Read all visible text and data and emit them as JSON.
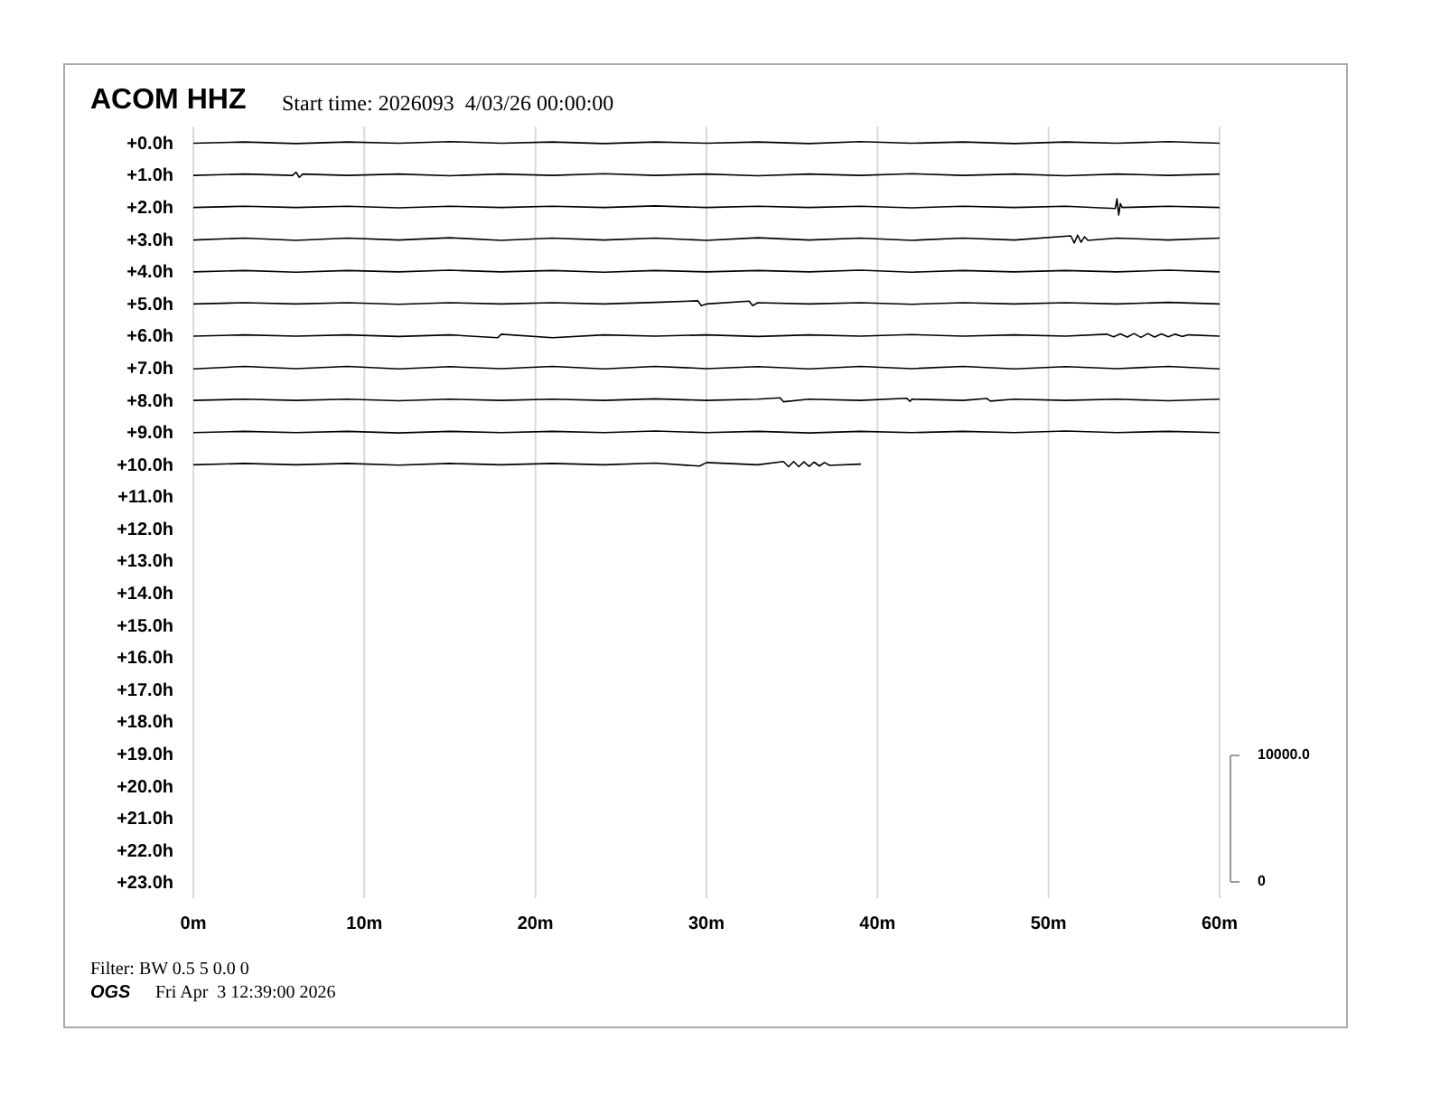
{
  "chart_data": {
    "type": "line",
    "title": "ACOM HHZ",
    "subtitle": "Start time: 2026093  4/03/26 00:00:00",
    "annotations": [
      "10000.0",
      "0",
      "Filter: BW 0.5 5 0.0 0",
      "OGS",
      "Fri Apr  3 12:39:00 2026"
    ],
    "xlim": [
      0,
      60
    ],
    "xticks": [
      {
        "value": 0,
        "label": "0m"
      },
      {
        "value": 10,
        "label": "10m"
      },
      {
        "value": 20,
        "label": "20m"
      },
      {
        "value": 30,
        "label": "30m"
      },
      {
        "value": 40,
        "label": "40m"
      },
      {
        "value": 50,
        "label": "50m"
      },
      {
        "value": 60,
        "label": "60m"
      }
    ],
    "ylim": [
      23.5,
      -0.5
    ],
    "yticks": [
      {
        "value": 0,
        "label": "+0.0h"
      },
      {
        "value": 1,
        "label": "+1.0h"
      },
      {
        "value": 2,
        "label": "+2.0h"
      },
      {
        "value": 3,
        "label": "+3.0h"
      },
      {
        "value": 4,
        "label": "+4.0h"
      },
      {
        "value": 5,
        "label": "+5.0h"
      },
      {
        "value": 6,
        "label": "+6.0h"
      },
      {
        "value": 7,
        "label": "+7.0h"
      },
      {
        "value": 8,
        "label": "+8.0h"
      },
      {
        "value": 9,
        "label": "+9.0h"
      },
      {
        "value": 10,
        "label": "+10.0h"
      },
      {
        "value": 11,
        "label": "+11.0h"
      },
      {
        "value": 12,
        "label": "+12.0h"
      },
      {
        "value": 13,
        "label": "+13.0h"
      },
      {
        "value": 14,
        "label": "+14.0h"
      },
      {
        "value": 15,
        "label": "+15.0h"
      },
      {
        "value": 16,
        "label": "+16.0h"
      },
      {
        "value": 17,
        "label": "+17.0h"
      },
      {
        "value": 18,
        "label": "+18.0h"
      },
      {
        "value": 19,
        "label": "+19.0h"
      },
      {
        "value": 20,
        "label": "+20.0h"
      },
      {
        "value": 21,
        "label": "+21.0h"
      },
      {
        "value": 22,
        "label": "+22.0h"
      },
      {
        "value": 23,
        "label": "+23.0h"
      }
    ],
    "grid": "x",
    "line_style": "solid",
    "series": [
      {
        "color": "#000000",
        "x": [
          0,
          3,
          6,
          9,
          12,
          15,
          18,
          21,
          24,
          27,
          30,
          33,
          36,
          39,
          42,
          45,
          48,
          51,
          54,
          57,
          60
        ],
        "values": [
          0.02,
          -0.02,
          0.03,
          -0.02,
          0.02,
          -0.03,
          0.02,
          -0.02,
          0.03,
          -0.02,
          0.02,
          -0.02,
          0.03,
          -0.03,
          0.02,
          -0.02,
          0.03,
          -0.02,
          0.02,
          -0.03,
          0.02
        ]
      },
      {
        "color": "#000000",
        "x": [
          0,
          3,
          5.8,
          6.0,
          6.2,
          6.4,
          9,
          12,
          15,
          18,
          21,
          24,
          27,
          30,
          33,
          36,
          39,
          42,
          45,
          48,
          51,
          54,
          57,
          60
        ],
        "values": [
          1.02,
          0.98,
          1.02,
          0.92,
          1.08,
          0.98,
          1.02,
          0.98,
          1.03,
          0.98,
          1.02,
          0.97,
          1.02,
          0.98,
          1.03,
          0.98,
          1.02,
          0.97,
          1.02,
          0.98,
          1.03,
          0.98,
          1.02,
          0.98
        ]
      },
      {
        "color": "#000000",
        "x": [
          0,
          3,
          6,
          9,
          12,
          15,
          18,
          21,
          24,
          27,
          30,
          33,
          36,
          39,
          42,
          45,
          48,
          51,
          53.9,
          54.0,
          54.1,
          54.2,
          54.3,
          57,
          60
        ],
        "values": [
          2.02,
          1.98,
          2.02,
          1.98,
          2.03,
          1.98,
          2.02,
          1.98,
          2.02,
          1.97,
          2.02,
          1.98,
          2.02,
          1.98,
          2.03,
          1.98,
          2.02,
          1.98,
          2.05,
          1.75,
          2.25,
          1.9,
          2.02,
          1.98,
          2.02
        ]
      },
      {
        "color": "#000000",
        "x": [
          0,
          3,
          6,
          9,
          12,
          15,
          18,
          21,
          24,
          27,
          30,
          33,
          36,
          39,
          42,
          45,
          48,
          51.3,
          51.5,
          51.7,
          51.9,
          52.1,
          52.3,
          54,
          57,
          60
        ],
        "values": [
          3.03,
          2.97,
          3.04,
          2.97,
          3.03,
          2.96,
          3.04,
          2.97,
          3.03,
          2.97,
          3.04,
          2.96,
          3.03,
          2.97,
          3.04,
          2.97,
          3.03,
          2.9,
          3.12,
          2.88,
          3.1,
          2.93,
          3.04,
          2.97,
          3.03,
          2.97
        ]
      },
      {
        "color": "#000000",
        "x": [
          0,
          3,
          6,
          9,
          12,
          15,
          18,
          21,
          24,
          27,
          30,
          33,
          36,
          39,
          42,
          45,
          48,
          51,
          54,
          57,
          60
        ],
        "values": [
          4.02,
          3.98,
          4.03,
          3.98,
          4.02,
          3.97,
          4.02,
          3.98,
          4.03,
          3.98,
          4.02,
          3.98,
          4.02,
          3.97,
          4.03,
          3.98,
          4.02,
          3.98,
          4.02,
          3.97,
          4.02
        ]
      },
      {
        "color": "#000000",
        "x": [
          0,
          3,
          6,
          9,
          12,
          15,
          18,
          21,
          24,
          27,
          29.5,
          29.7,
          30,
          32.5,
          32.7,
          33,
          36,
          39,
          42,
          45,
          48,
          51,
          54,
          57,
          60
        ],
        "values": [
          5.02,
          4.98,
          5.02,
          4.98,
          5.03,
          4.98,
          5.02,
          4.98,
          5.02,
          4.97,
          4.92,
          5.07,
          5.02,
          4.93,
          5.07,
          4.98,
          5.02,
          4.98,
          5.03,
          4.98,
          5.02,
          4.98,
          5.02,
          4.97,
          5.02
        ]
      },
      {
        "color": "#000000",
        "x": [
          0,
          3,
          6,
          9,
          12,
          15,
          17.8,
          18,
          21,
          24,
          27,
          30,
          33,
          36,
          39,
          42,
          45,
          48,
          51,
          53.4,
          53.8,
          54.2,
          54.6,
          55,
          55.4,
          55.8,
          56.2,
          56.6,
          57,
          57.4,
          57.8,
          58.2,
          60
        ],
        "values": [
          6.02,
          5.98,
          6.02,
          5.98,
          6.03,
          5.98,
          6.07,
          5.96,
          6.07,
          5.98,
          6.02,
          5.98,
          6.03,
          5.98,
          6.02,
          5.97,
          6.02,
          5.98,
          6.02,
          5.96,
          6.04,
          5.95,
          6.05,
          5.94,
          6.06,
          5.94,
          6.05,
          5.95,
          6.04,
          5.96,
          6.03,
          5.98,
          6.02
        ]
      },
      {
        "color": "#000000",
        "x": [
          0,
          3,
          6,
          9,
          12,
          15,
          18,
          21,
          24,
          27,
          30,
          33,
          36,
          39,
          42,
          45,
          48,
          51,
          54,
          57,
          60
        ],
        "values": [
          7.04,
          6.96,
          7.03,
          6.96,
          7.04,
          6.97,
          7.03,
          6.96,
          7.04,
          6.96,
          7.03,
          6.97,
          7.04,
          6.96,
          7.03,
          6.96,
          7.04,
          6.97,
          7.03,
          6.96,
          7.04
        ]
      },
      {
        "color": "#000000",
        "x": [
          0,
          3,
          6,
          9,
          12,
          15,
          18,
          21,
          24,
          27,
          30,
          33,
          34.3,
          34.5,
          36,
          39,
          41.7,
          41.9,
          42,
          45,
          46.4,
          46.6,
          48,
          51,
          54,
          57,
          60
        ],
        "values": [
          8.02,
          7.98,
          8.02,
          7.98,
          8.03,
          7.98,
          8.02,
          7.98,
          8.02,
          7.97,
          8.02,
          7.98,
          7.94,
          8.06,
          7.98,
          8.02,
          7.95,
          8.05,
          7.98,
          8.02,
          7.96,
          8.04,
          7.98,
          8.02,
          7.98,
          8.03,
          7.98
        ]
      },
      {
        "color": "#000000",
        "x": [
          0,
          3,
          6,
          9,
          12,
          15,
          18,
          21,
          24,
          27,
          30,
          33,
          36,
          39,
          42,
          45,
          48,
          51,
          54,
          57,
          60
        ],
        "values": [
          9.02,
          8.98,
          9.02,
          8.98,
          9.03,
          8.98,
          9.02,
          8.98,
          9.02,
          8.97,
          9.02,
          8.98,
          9.03,
          8.98,
          9.02,
          8.98,
          9.02,
          8.97,
          9.02,
          8.98,
          9.02
        ]
      },
      {
        "color": "#000000",
        "x": [
          0,
          3,
          6,
          9,
          12,
          15,
          18,
          21,
          24,
          27,
          29.6,
          30,
          33,
          34.5,
          34.8,
          35.1,
          35.4,
          35.7,
          36,
          36.3,
          36.6,
          36.9,
          37.2,
          39
        ],
        "values": [
          10.02,
          9.98,
          10.02,
          9.98,
          10.03,
          9.98,
          10.02,
          9.98,
          10.02,
          9.97,
          10.06,
          9.95,
          10.02,
          9.92,
          10.08,
          9.92,
          10.08,
          9.93,
          10.07,
          9.94,
          10.06,
          9.95,
          10.04,
          10.0
        ]
      }
    ]
  }
}
